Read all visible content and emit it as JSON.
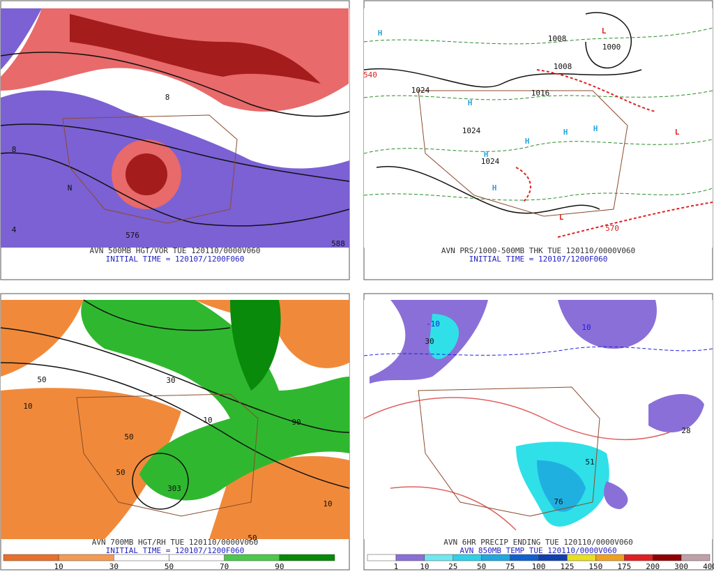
{
  "panels": [
    {
      "caption": "AVN 500MB HGT/VOR TUE 120110/0000V060",
      "initial_time": "INITIAL TIME = 120107/1200F060",
      "map_labels": [
        "576",
        "588",
        "8",
        "4",
        "8",
        "N"
      ]
    },
    {
      "caption": "AVN PRS/1000-500MB THK TUE 120110/0000V060",
      "initial_time": "INITIAL TIME = 120107/1200F060",
      "map_labels": [
        "H",
        "H",
        "H",
        "H",
        "H",
        "H",
        "H",
        "L",
        "L",
        "L",
        "1024",
        "1024",
        "1024",
        "1016",
        "1008",
        "1008",
        "1000",
        "570",
        "540"
      ]
    },
    {
      "caption": "AVN 700MB HGT/RH TUE 120110/0000V060",
      "initial_time": "INITIAL TIME = 120107/1200F060",
      "map_labels": [
        "10",
        "10",
        "50",
        "50",
        "30",
        "10",
        "303",
        "50",
        "90",
        "50"
      ],
      "colorbar": [
        10,
        30,
        50,
        70,
        90
      ]
    },
    {
      "caption": "AVN 6HR PRECIP ENDING TUE 120110/0000V060",
      "initial_time": "AVN 850MB TEMP TUE 120110/0000V060",
      "map_labels": [
        "76",
        "51",
        "28",
        "-10",
        "10",
        "30"
      ],
      "colorbar": [
        1,
        10,
        25,
        50,
        75,
        100,
        125,
        150,
        175,
        200,
        300,
        400
      ]
    }
  ]
}
